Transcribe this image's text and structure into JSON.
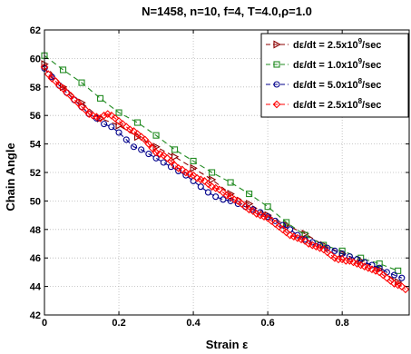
{
  "chart_data": {
    "type": "line",
    "title": "N=1458, n=10, f=4, T=4.0,ρ=1.0",
    "xlabel": "Strain ε",
    "ylabel": "Chain Angle",
    "xlim": [
      0,
      0.98
    ],
    "ylim": [
      42,
      62
    ],
    "xticks": [
      0,
      0.2,
      0.4,
      0.6,
      0.8
    ],
    "xtick_labels": [
      "0",
      "0.2",
      "0.4",
      "0.6",
      "0.8"
    ],
    "yticks": [
      42,
      44,
      46,
      48,
      50,
      52,
      54,
      56,
      58,
      60,
      62
    ],
    "ytick_labels": [
      "42",
      "44",
      "46",
      "48",
      "50",
      "52",
      "54",
      "56",
      "58",
      "60",
      "62"
    ],
    "grid": true,
    "legend_position": "top-right",
    "series": [
      {
        "legend": "dε/dt = 2.5x10^9/sec",
        "legend_pre": "dε/dt = 2.5x10",
        "legend_sup": "9",
        "legend_post": "/sec",
        "color": "#8b0000",
        "marker": "triangle-right",
        "dash": "6,4",
        "x": [
          0,
          0.05,
          0.1,
          0.15,
          0.2,
          0.25,
          0.3,
          0.35,
          0.4,
          0.45,
          0.5,
          0.55,
          0.6,
          0.65,
          0.7,
          0.75,
          0.8,
          0.85,
          0.9,
          0.95
        ],
        "y": [
          59.6,
          58.0,
          56.9,
          55.8,
          55.3,
          54.5,
          53.8,
          53.1,
          52.3,
          51.5,
          50.5,
          49.8,
          49.0,
          48.3,
          47.7,
          46.9,
          46.3,
          45.8,
          45.2,
          44.3
        ]
      },
      {
        "legend": "dε/dt = 1.0x10^9/sec",
        "legend_pre": "dε/dt = 1.0x10",
        "legend_sup": "9",
        "legend_post": "/sec",
        "color": "#228b22",
        "marker": "square",
        "dash": "6,4",
        "x": [
          0,
          0.05,
          0.1,
          0.15,
          0.2,
          0.25,
          0.3,
          0.35,
          0.4,
          0.45,
          0.5,
          0.55,
          0.6,
          0.65,
          0.7,
          0.75,
          0.8,
          0.85,
          0.9,
          0.95
        ],
        "y": [
          60.2,
          59.2,
          58.3,
          57.2,
          56.2,
          55.5,
          54.6,
          53.6,
          52.8,
          52.0,
          51.3,
          50.5,
          49.6,
          48.5,
          47.6,
          46.9,
          46.5,
          46.0,
          45.6,
          45.1
        ]
      },
      {
        "legend": "dε/dt = 5.0x10^8/sec",
        "legend_pre": "dε/dt = 5.0x10",
        "legend_sup": "8",
        "legend_post": "/sec",
        "color": "#00008b",
        "marker": "circle",
        "dash": "6,4",
        "x": [
          0,
          0.02,
          0.04,
          0.06,
          0.08,
          0.1,
          0.12,
          0.14,
          0.16,
          0.18,
          0.2,
          0.22,
          0.24,
          0.26,
          0.28,
          0.3,
          0.32,
          0.34,
          0.36,
          0.38,
          0.4,
          0.42,
          0.44,
          0.46,
          0.48,
          0.5,
          0.52,
          0.54,
          0.56,
          0.58,
          0.6,
          0.62,
          0.64,
          0.66,
          0.68,
          0.7,
          0.72,
          0.74,
          0.76,
          0.78,
          0.8,
          0.82,
          0.84,
          0.86,
          0.88,
          0.9,
          0.92,
          0.94,
          0.96
        ],
        "y": [
          59.3,
          58.7,
          58.1,
          57.6,
          57.1,
          56.6,
          56.1,
          55.8,
          55.4,
          55.2,
          54.8,
          54.3,
          53.8,
          53.6,
          53.3,
          53.0,
          52.7,
          52.4,
          52.1,
          51.8,
          51.4,
          51.0,
          50.6,
          50.3,
          50.1,
          50.0,
          49.8,
          49.6,
          49.4,
          49.2,
          48.9,
          48.6,
          48.3,
          48.0,
          47.6,
          47.3,
          47.1,
          46.9,
          46.7,
          46.5,
          46.3,
          46.1,
          45.9,
          45.7,
          45.5,
          45.3,
          45.0,
          44.8,
          44.6
        ]
      },
      {
        "legend": "dε/dt = 2.5x10^8/sec",
        "legend_pre": "dε/dt = 2.5x10",
        "legend_sup": "8",
        "legend_post": "/sec",
        "color": "#ff0000",
        "marker": "diamond",
        "dash": "6,4",
        "x": [
          0,
          0.01,
          0.02,
          0.03,
          0.04,
          0.05,
          0.06,
          0.07,
          0.08,
          0.09,
          0.1,
          0.11,
          0.12,
          0.13,
          0.14,
          0.15,
          0.16,
          0.17,
          0.18,
          0.19,
          0.2,
          0.21,
          0.22,
          0.23,
          0.24,
          0.25,
          0.26,
          0.27,
          0.28,
          0.29,
          0.3,
          0.31,
          0.32,
          0.33,
          0.34,
          0.35,
          0.36,
          0.37,
          0.38,
          0.39,
          0.4,
          0.41,
          0.42,
          0.43,
          0.44,
          0.45,
          0.46,
          0.47,
          0.48,
          0.49,
          0.5,
          0.51,
          0.52,
          0.53,
          0.54,
          0.55,
          0.56,
          0.57,
          0.58,
          0.59,
          0.6,
          0.61,
          0.62,
          0.63,
          0.64,
          0.65,
          0.66,
          0.67,
          0.68,
          0.69,
          0.7,
          0.71,
          0.72,
          0.73,
          0.74,
          0.75,
          0.76,
          0.77,
          0.78,
          0.79,
          0.8,
          0.81,
          0.82,
          0.83,
          0.84,
          0.85,
          0.86,
          0.87,
          0.88,
          0.89,
          0.9,
          0.91,
          0.92,
          0.93,
          0.94,
          0.95,
          0.96,
          0.97
        ],
        "y": [
          59.4,
          58.9,
          58.6,
          58.4,
          58.1,
          57.9,
          57.6,
          57.4,
          57.1,
          56.9,
          56.6,
          56.4,
          56.1,
          56.0,
          55.9,
          55.8,
          56.0,
          56.1,
          56.0,
          55.8,
          55.6,
          55.4,
          55.2,
          55.0,
          54.9,
          54.7,
          54.5,
          54.3,
          54.0,
          53.7,
          53.4,
          53.3,
          53.2,
          53.0,
          52.8,
          52.5,
          52.3,
          52.2,
          52.0,
          51.9,
          51.8,
          51.6,
          51.5,
          51.4,
          51.2,
          51.0,
          50.9,
          50.8,
          50.6,
          50.4,
          50.3,
          50.1,
          50.0,
          49.8,
          49.6,
          49.4,
          49.3,
          49.1,
          49.0,
          48.9,
          48.8,
          48.6,
          48.4,
          48.2,
          48.0,
          47.8,
          47.6,
          47.5,
          47.4,
          47.3,
          47.2,
          47.0,
          46.9,
          46.8,
          46.7,
          46.6,
          46.4,
          46.2,
          46.0,
          45.9,
          45.9,
          45.8,
          45.8,
          45.7,
          45.6,
          45.5,
          45.4,
          45.3,
          45.2,
          45.1,
          45.0,
          44.8,
          44.6,
          44.4,
          44.2,
          44.1,
          44.0,
          43.8
        ]
      }
    ]
  }
}
